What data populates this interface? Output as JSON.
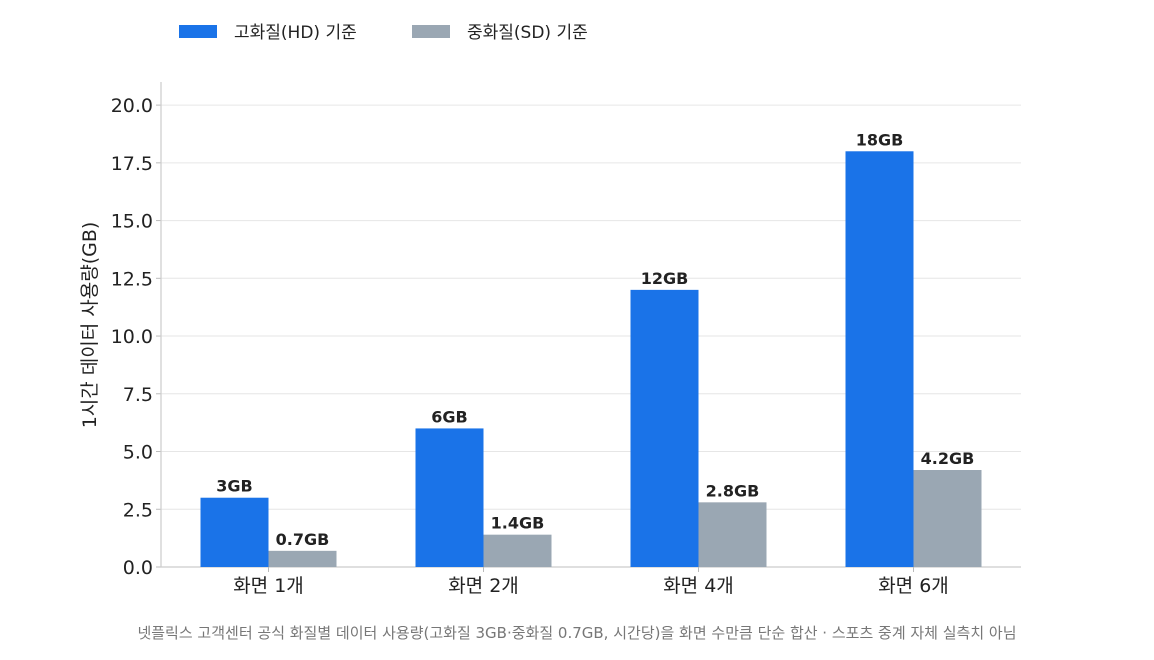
{
  "chart_data": {
    "type": "bar",
    "categories": [
      "화면 1개",
      "화면 2개",
      "화면 4개",
      "화면 6개"
    ],
    "series": [
      {
        "name": "고화질(HD) 기준",
        "values": [
          3,
          6,
          12,
          18
        ],
        "labels": [
          "3GB",
          "6GB",
          "12GB",
          "18GB"
        ],
        "color": "#1a73e8"
      },
      {
        "name": "중화질(SD) 기준",
        "values": [
          0.7,
          1.4,
          2.8,
          4.2
        ],
        "labels": [
          "0.7GB",
          "1.4GB",
          "2.8GB",
          "4.2GB"
        ],
        "color": "#9aa7b3"
      }
    ],
    "ylabel": "1시간 데이터 사용량(GB)",
    "xlabel": "",
    "ylim": [
      0,
      21
    ],
    "yticks": [
      "0.0",
      "2.5",
      "5.0",
      "7.5",
      "10.0",
      "12.5",
      "15.0",
      "17.5",
      "20.0"
    ],
    "grid": "horizontal",
    "legend_position": "top-left"
  },
  "footnote": "넷플릭스 고객센터 공식 화질별 데이터 사용량(고화질 3GB·중화질 0.7GB, 시간당)을 화면 수만큼 단순 합산 · 스포츠 중계 자체 실측치 아님"
}
